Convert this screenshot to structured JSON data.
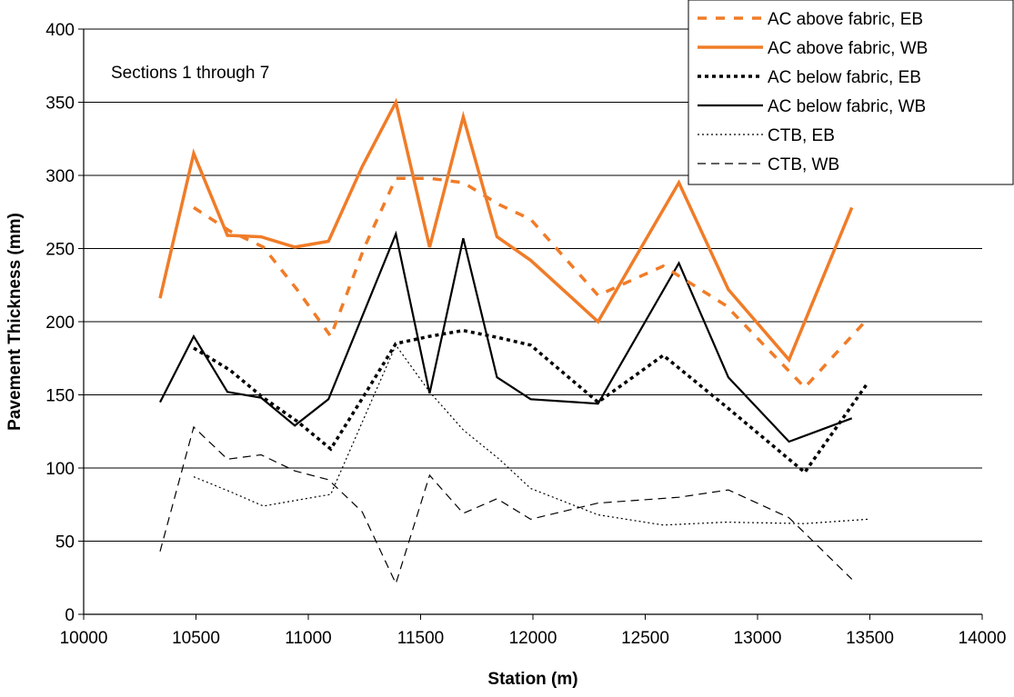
{
  "chart_data": {
    "type": "line",
    "xlabel": "Station (m)",
    "ylabel": "Pavement Thickness (mm)",
    "annotation": "Sections 1 through 7",
    "xlim": [
      10000,
      14000
    ],
    "ylim": [
      0,
      400
    ],
    "x_ticks": [
      10000,
      10500,
      11000,
      11500,
      12000,
      12500,
      13000,
      13500,
      14000
    ],
    "y_ticks": [
      0,
      50,
      100,
      150,
      200,
      250,
      300,
      350,
      400
    ],
    "grid": "horizontal",
    "legend_position": "top-right",
    "series": [
      {
        "name": "AC above fabric, EB",
        "color": "#F07C28",
        "style": "dashed-thick",
        "points": [
          [
            10490,
            278
          ],
          [
            10650,
            262
          ],
          [
            10800,
            251
          ],
          [
            10950,
            222
          ],
          [
            11100,
            190
          ],
          [
            11250,
            251
          ],
          [
            11390,
            298
          ],
          [
            11540,
            298
          ],
          [
            11690,
            295
          ],
          [
            11850,
            280
          ],
          [
            11990,
            270
          ],
          [
            12290,
            218
          ],
          [
            12580,
            238
          ],
          [
            12860,
            211
          ],
          [
            13210,
            155
          ],
          [
            13490,
            202
          ]
        ]
      },
      {
        "name": "AC above fabric, WB",
        "color": "#F07C28",
        "style": "solid-thick",
        "points": [
          [
            10340,
            216
          ],
          [
            10490,
            315
          ],
          [
            10640,
            259
          ],
          [
            10790,
            258
          ],
          [
            10940,
            251
          ],
          [
            11090,
            255
          ],
          [
            11240,
            306
          ],
          [
            11390,
            350
          ],
          [
            11540,
            251
          ],
          [
            11690,
            340
          ],
          [
            11840,
            258
          ],
          [
            11990,
            242
          ],
          [
            12290,
            200
          ],
          [
            12650,
            295
          ],
          [
            12870,
            222
          ],
          [
            13140,
            174
          ],
          [
            13420,
            278
          ]
        ]
      },
      {
        "name": "AC below fabric, EB",
        "color": "#000000",
        "style": "dotted-thick",
        "points": [
          [
            10490,
            182
          ],
          [
            10650,
            167
          ],
          [
            10800,
            148
          ],
          [
            10950,
            132
          ],
          [
            11100,
            113
          ],
          [
            11250,
            150
          ],
          [
            11390,
            185
          ],
          [
            11540,
            190
          ],
          [
            11690,
            194
          ],
          [
            11850,
            189
          ],
          [
            11990,
            184
          ],
          [
            12290,
            145
          ],
          [
            12580,
            177
          ],
          [
            12860,
            142
          ],
          [
            13210,
            97
          ],
          [
            13490,
            158
          ]
        ]
      },
      {
        "name": "AC below fabric, WB",
        "color": "#000000",
        "style": "solid",
        "points": [
          [
            10340,
            145
          ],
          [
            10490,
            190
          ],
          [
            10640,
            152
          ],
          [
            10790,
            148
          ],
          [
            10940,
            129
          ],
          [
            11090,
            147
          ],
          [
            11390,
            260
          ],
          [
            11540,
            151
          ],
          [
            11690,
            257
          ],
          [
            11840,
            162
          ],
          [
            11990,
            147
          ],
          [
            12290,
            144
          ],
          [
            12650,
            240
          ],
          [
            12870,
            162
          ],
          [
            13140,
            118
          ],
          [
            13420,
            134
          ]
        ]
      },
      {
        "name": "CTB, EB",
        "color": "#000000",
        "style": "dotted-thin",
        "points": [
          [
            10490,
            94
          ],
          [
            10650,
            84
          ],
          [
            10800,
            74
          ],
          [
            10950,
            78
          ],
          [
            11100,
            82
          ],
          [
            11390,
            184
          ],
          [
            11540,
            152
          ],
          [
            11690,
            126
          ],
          [
            11850,
            106
          ],
          [
            11990,
            86
          ],
          [
            12290,
            68
          ],
          [
            12580,
            61
          ],
          [
            12860,
            63
          ],
          [
            13210,
            62
          ],
          [
            13490,
            65
          ]
        ]
      },
      {
        "name": "CTB, WB",
        "color": "#000000",
        "style": "dashed-thin",
        "points": [
          [
            10340,
            43
          ],
          [
            10490,
            128
          ],
          [
            10640,
            106
          ],
          [
            10790,
            109
          ],
          [
            10940,
            98
          ],
          [
            11090,
            92
          ],
          [
            11240,
            70
          ],
          [
            11390,
            21
          ],
          [
            11540,
            95
          ],
          [
            11690,
            69
          ],
          [
            11840,
            79
          ],
          [
            11990,
            65
          ],
          [
            12290,
            76
          ],
          [
            12650,
            80
          ],
          [
            12870,
            85
          ],
          [
            13140,
            66
          ],
          [
            13420,
            24
          ]
        ]
      }
    ]
  }
}
